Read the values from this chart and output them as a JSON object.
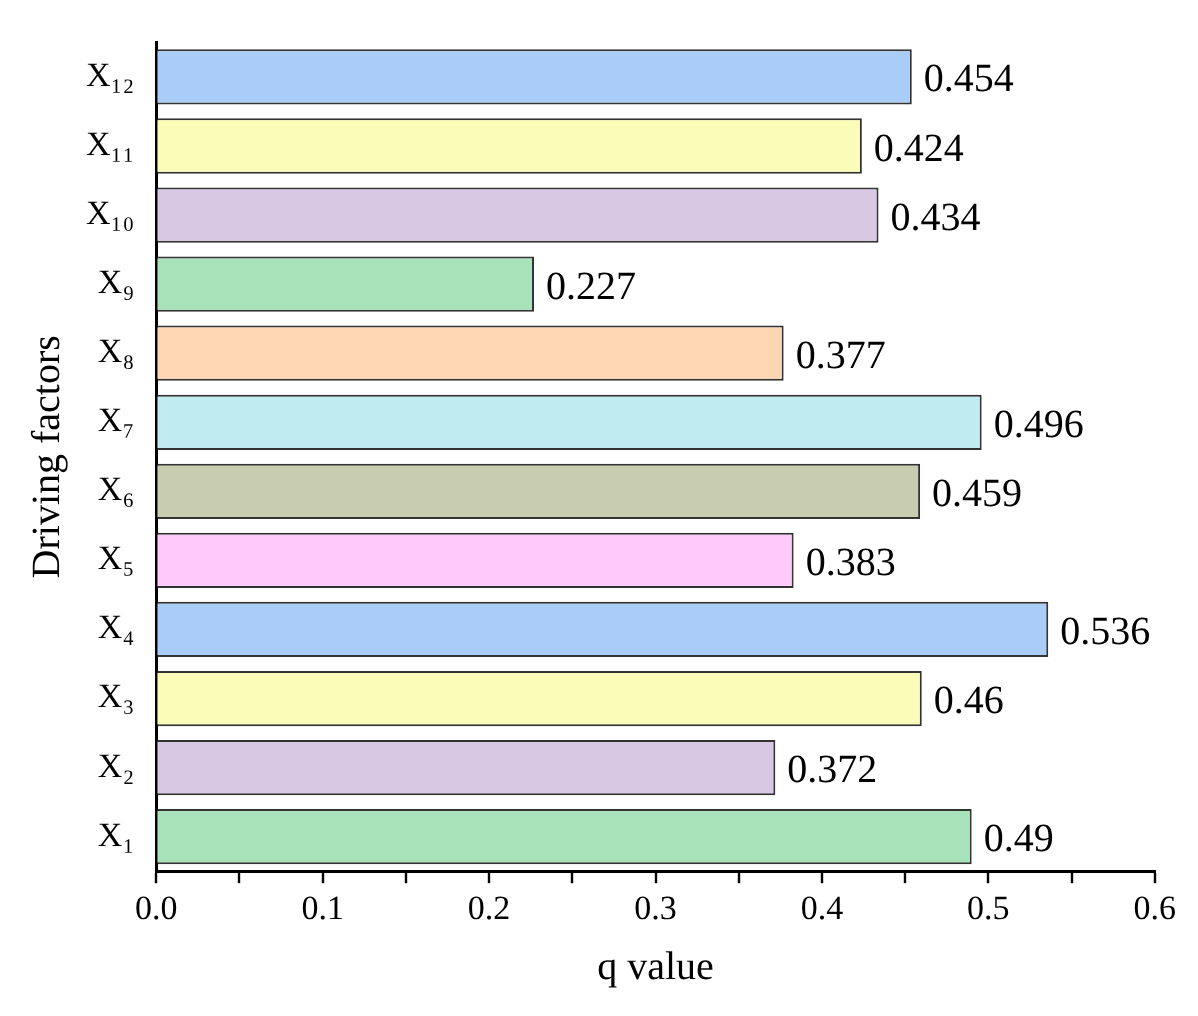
{
  "chart_data": {
    "type": "bar",
    "orientation": "horizontal",
    "xlabel": "q value",
    "ylabel": "Driving factors",
    "categories": [
      "X₁₂",
      "X₁₁",
      "X₁₀",
      "X₉",
      "X₈",
      "X₇",
      "X₆",
      "X₅",
      "X₄",
      "X₃",
      "X₂",
      "X₁"
    ],
    "values": [
      0.454,
      0.424,
      0.434,
      0.227,
      0.377,
      0.496,
      0.459,
      0.383,
      0.536,
      0.46,
      0.372,
      0.49
    ],
    "colors": [
      "#aacdf7",
      "#fbfcb8",
      "#d8c8e4",
      "#a8e2b8",
      "#fdd7b4",
      "#c0ebf0",
      "#c8cdb0",
      "#fecbfb",
      "#aacdf7",
      "#fbfcb8",
      "#d8c8e4",
      "#a8e2b8"
    ],
    "xlim": [
      0,
      0.6
    ],
    "xticks": [
      {
        "value": 0,
        "label": "0.0"
      },
      {
        "value": 0.05,
        "label": null
      },
      {
        "value": 0.1,
        "label": "0.1"
      },
      {
        "value": 0.15,
        "label": null
      },
      {
        "value": 0.2,
        "label": "0.2"
      },
      {
        "value": 0.25,
        "label": null
      },
      {
        "value": 0.3,
        "label": "0.3"
      },
      {
        "value": 0.35,
        "label": null
      },
      {
        "value": 0.4,
        "label": "0.4"
      },
      {
        "value": 0.45,
        "label": null
      },
      {
        "value": 0.5,
        "label": "0.5"
      },
      {
        "value": 0.55,
        "label": null
      },
      {
        "value": 0.6,
        "label": "0.6"
      }
    ],
    "data_labels": true,
    "grid": false,
    "legend": false
  }
}
